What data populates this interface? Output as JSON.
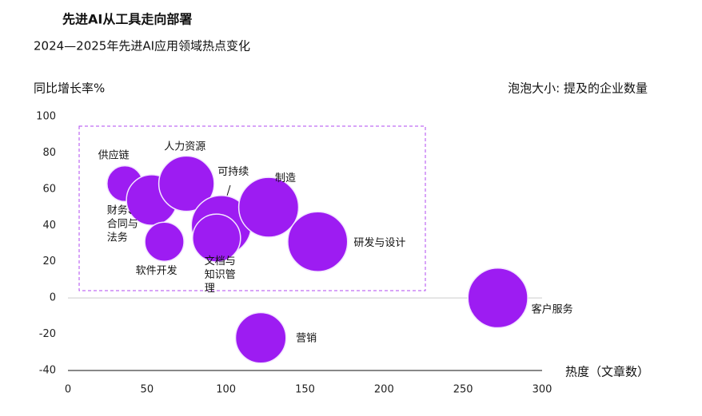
{
  "chart_data": {
    "type": "bubble",
    "title": "先进AI从工具走向部署",
    "subtitle": "2024—2025年先进AI应用领域热点变化",
    "y_label": "同比增长率%",
    "size_label": "泡泡大小: 提及的企业数量",
    "x_label": "热度（文章数）",
    "categories": [
      "供应链",
      "财务、合同与法务",
      "人力资源",
      "软件开发",
      "可持续",
      "文档与知识管理",
      "制造",
      "研发与设计",
      "客户服务",
      "营销"
    ],
    "x": [
      36,
      53,
      75,
      61,
      97,
      94,
      127,
      158,
      272,
      122
    ],
    "values": [
      63,
      54,
      63,
      31,
      40,
      33,
      50,
      31,
      0,
      -22
    ],
    "sizes": [
      5,
      10,
      12,
      6,
      14,
      9,
      14,
      14,
      14,
      10
    ],
    "color": "#9d1cf2",
    "xlim": [
      0,
      300
    ],
    "xticks": [
      0,
      50,
      100,
      150,
      200,
      250,
      300
    ],
    "ylim": [
      -40,
      100
    ],
    "yticks": [
      -40,
      -20,
      0,
      20,
      40,
      60,
      80,
      100
    ]
  }
}
